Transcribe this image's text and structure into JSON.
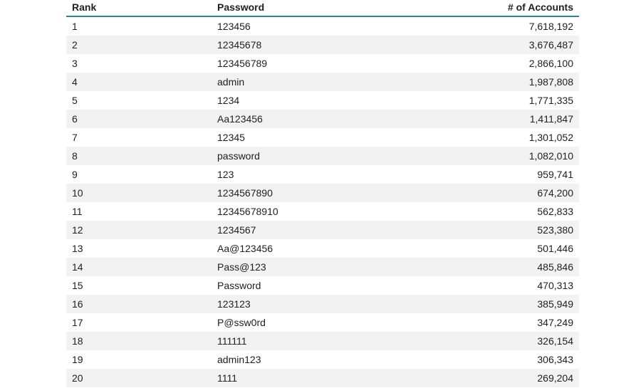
{
  "chart_data": {
    "type": "table",
    "columns": [
      "Rank",
      "Password",
      "# of Accounts"
    ],
    "rows": [
      [
        "1",
        "123456",
        "7,618,192"
      ],
      [
        "2",
        "12345678",
        "3,676,487"
      ],
      [
        "3",
        "123456789",
        "2,866,100"
      ],
      [
        "4",
        "admin",
        "1,987,808"
      ],
      [
        "5",
        "1234",
        "1,771,335"
      ],
      [
        "6",
        "Aa123456",
        "1,411,847"
      ],
      [
        "7",
        "12345",
        "1,301,052"
      ],
      [
        "8",
        "password",
        "1,082,010"
      ],
      [
        "9",
        "123",
        "959,741"
      ],
      [
        "10",
        "1234567890",
        "674,200"
      ],
      [
        "11",
        "12345678910",
        "562,833"
      ],
      [
        "12",
        "1234567",
        "523,380"
      ],
      [
        "13",
        "Aa@123456",
        "501,446"
      ],
      [
        "14",
        "Pass@123",
        "485,846"
      ],
      [
        "15",
        "Password",
        "470,313"
      ],
      [
        "16",
        "123123",
        "385,949"
      ],
      [
        "17",
        "P@ssw0rd",
        "347,249"
      ],
      [
        "18",
        "111111",
        "326,154"
      ],
      [
        "19",
        "admin123",
        "306,343"
      ],
      [
        "20",
        "1111",
        "269,204"
      ]
    ],
    "layout": {
      "zebra_striping": "even rows shaded",
      "header_underline": true
    }
  },
  "colors": {
    "header_underline": "#2d7f9e",
    "row_stripe": "#f2f2f2",
    "text": "#202124",
    "background": "#ffffff"
  }
}
